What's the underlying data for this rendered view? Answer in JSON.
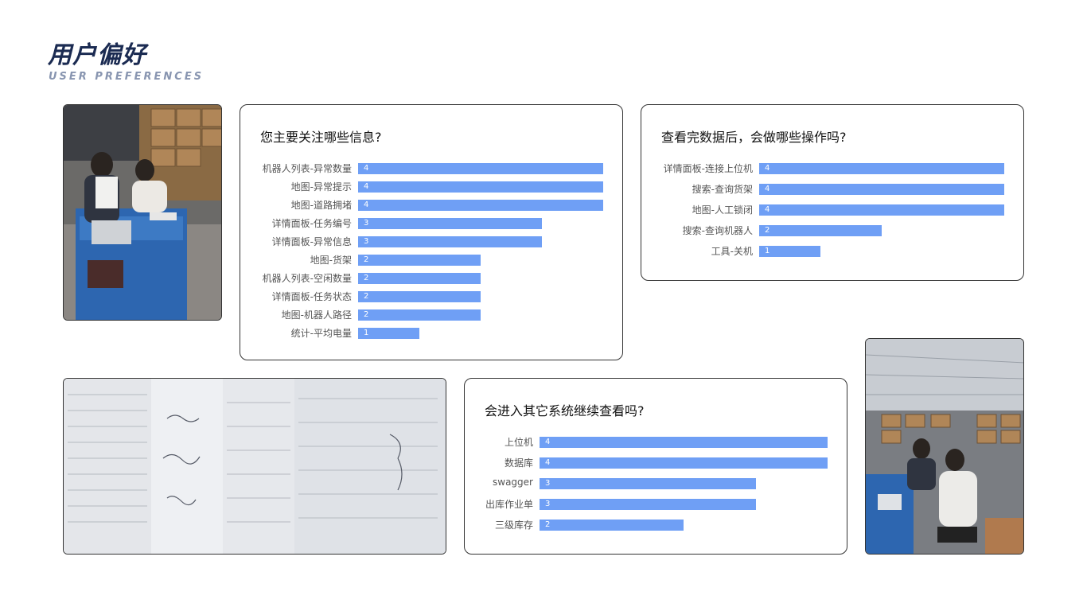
{
  "header": {
    "title": "用户偏好",
    "subtitle": "USER PREFERENCES"
  },
  "chart_data": [
    {
      "type": "bar",
      "orientation": "horizontal",
      "title": "您主要关注哪些信息?",
      "categories": [
        "机器人列表-异常数量",
        "地图-异常提示",
        "地图-道路拥堵",
        "详情面板-任务编号",
        "详情面板-异常信息",
        "地图-货架",
        "机器人列表-空闲数量",
        "详情面板-任务状态",
        "地图-机器人路径",
        "统计-平均电量"
      ],
      "values": [
        4,
        4,
        4,
        3,
        3,
        2,
        2,
        2,
        2,
        1
      ],
      "xlim": [
        0,
        4
      ],
      "color": "#6f9ff5"
    },
    {
      "type": "bar",
      "orientation": "horizontal",
      "title": "查看完数据后，会做哪些操作吗?",
      "categories": [
        "详情面板-连接上位机",
        "搜索-查询货架",
        "地图-人工锁闭",
        "搜索-查询机器人",
        "工具-关机"
      ],
      "values": [
        4,
        4,
        4,
        2,
        1
      ],
      "xlim": [
        0,
        4
      ],
      "color": "#6f9ff5"
    },
    {
      "type": "bar",
      "orientation": "horizontal",
      "title": "会进入其它系统继续查看吗?",
      "categories": [
        "上位机",
        "数据库",
        "swagger",
        "出库作业单",
        "三级库存"
      ],
      "values": [
        4,
        4,
        3,
        3,
        2
      ],
      "xlim": [
        0,
        4
      ],
      "color": "#6f9ff5"
    }
  ]
}
